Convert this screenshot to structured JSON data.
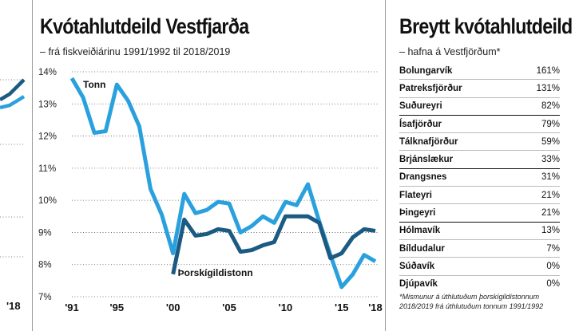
{
  "left_fragment": {
    "x_label": "'18"
  },
  "chart": {
    "title": "Kvótahlutdeild Vestfjarða",
    "subtitle": "frá fiskveiðiárinu 1991/1992 til 2018/2019"
  },
  "chart_data": {
    "type": "line",
    "title": "Kvótahlutdeild Vestfjarða",
    "subtitle": "frá fiskveiðiárinu 1991/1992 til 2018/2019",
    "x_tick_labels": [
      "'91",
      "'95",
      "'00",
      "'05",
      "'10",
      "'15",
      "'18"
    ],
    "x_ticks": [
      1991,
      1995,
      2000,
      2005,
      2010,
      2015,
      2018
    ],
    "y_tick_labels": [
      "14%",
      "13%",
      "12%",
      "11%",
      "10%",
      "9%",
      "8%",
      "7%"
    ],
    "y_ticks": [
      14,
      13,
      12,
      11,
      10,
      9,
      8,
      7
    ],
    "ylim": [
      7,
      14
    ],
    "xlim": [
      1991,
      2018
    ],
    "grid": "horizontal-dotted",
    "x": [
      1991,
      1992,
      1993,
      1994,
      1995,
      1996,
      1997,
      1998,
      1999,
      2000,
      2001,
      2002,
      2003,
      2004,
      2005,
      2006,
      2007,
      2008,
      2009,
      2010,
      2011,
      2012,
      2013,
      2014,
      2015,
      2016,
      2017,
      2018
    ],
    "series": [
      {
        "name": "Tonn",
        "color": "#2aa0dd",
        "values": [
          13.8,
          13.2,
          12.1,
          12.15,
          13.6,
          13.1,
          12.3,
          10.35,
          9.55,
          8.35,
          10.2,
          9.6,
          9.7,
          9.95,
          9.9,
          9.0,
          9.2,
          9.5,
          9.3,
          9.95,
          9.85,
          10.5,
          9.35,
          8.3,
          7.3,
          7.7,
          8.3,
          8.1
        ]
      },
      {
        "name": "Þorskígildistonn",
        "color": "#1b5a82",
        "x": [
          2000,
          2001,
          2002,
          2003,
          2004,
          2005,
          2006,
          2007,
          2008,
          2009,
          2010,
          2011,
          2012,
          2013,
          2014,
          2015,
          2016,
          2017,
          2018
        ],
        "values": [
          7.7,
          9.4,
          8.9,
          8.95,
          9.1,
          9.05,
          8.4,
          8.45,
          8.6,
          8.7,
          9.5,
          9.5,
          9.5,
          9.3,
          8.2,
          8.35,
          8.85,
          9.1,
          9.05
        ]
      }
    ],
    "annotations": [
      {
        "text": "Tonn",
        "series": "Tonn"
      },
      {
        "text": "Þorskígildistonn",
        "series": "Þorskígildistonn"
      }
    ]
  },
  "table": {
    "title": "Breytt kvótahlutdeild",
    "subtitle": "hafna á Vestfjörðum*",
    "rows": [
      {
        "name": "Bolungarvík",
        "value": "161%"
      },
      {
        "name": "Patreksfjörður",
        "value": "131%"
      },
      {
        "name": "Suðureyri",
        "value": "82%"
      },
      {
        "name": "Ísafjörður",
        "value": "79%"
      },
      {
        "name": "Tálknafjörður",
        "value": "59%"
      },
      {
        "name": "Brjánslækur",
        "value": "33%"
      },
      {
        "name": "Drangsnes",
        "value": "31%"
      },
      {
        "name": "Flateyri",
        "value": "21%"
      },
      {
        "name": "Þingeyri",
        "value": "21%"
      },
      {
        "name": "Hólmavík",
        "value": "13%"
      },
      {
        "name": "Bíldudalur",
        "value": "7%"
      },
      {
        "name": "Súðavík",
        "value": "0%"
      },
      {
        "name": "Djúpavík",
        "value": "0%"
      }
    ],
    "footnote_line1": "*Mismunur á úthlutuðum þorskígildistonnum",
    "footnote_line2": "2018/2019 frá úthlutuðum tonnum 1991/1992"
  }
}
